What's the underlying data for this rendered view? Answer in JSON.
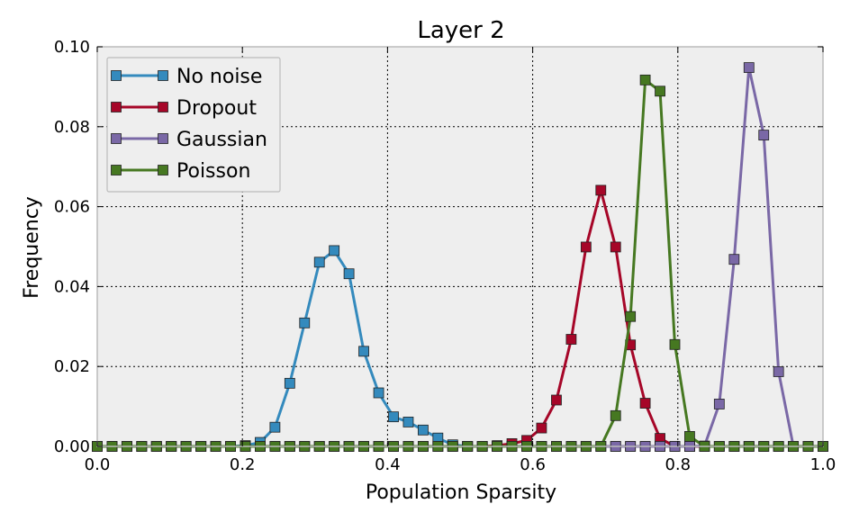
{
  "chart_data": {
    "type": "line",
    "title": "Layer 2",
    "xlabel": "Population Sparsity",
    "ylabel": "Frequency",
    "xlim": [
      0.0,
      1.0
    ],
    "ylim": [
      0.0,
      0.1
    ],
    "xticks": [
      "0.0",
      "0.2",
      "0.4",
      "0.6",
      "0.8",
      "1.0"
    ],
    "yticks": [
      "0.00",
      "0.02",
      "0.04",
      "0.06",
      "0.08",
      "0.10"
    ],
    "grid": true,
    "legend_position": "upper-left",
    "x": [
      0.0,
      0.0204,
      0.0408,
      0.0612,
      0.0816,
      0.102,
      0.1224,
      0.1429,
      0.1633,
      0.1837,
      0.2041,
      0.2245,
      0.2449,
      0.2653,
      0.2857,
      0.3061,
      0.3265,
      0.3469,
      0.3673,
      0.3878,
      0.4082,
      0.4286,
      0.449,
      0.4694,
      0.4898,
      0.5102,
      0.5306,
      0.551,
      0.5714,
      0.5918,
      0.6122,
      0.6327,
      0.6531,
      0.6735,
      0.6939,
      0.7143,
      0.7347,
      0.7551,
      0.7755,
      0.7959,
      0.8163,
      0.8367,
      0.8571,
      0.8776,
      0.898,
      0.9184,
      0.9388,
      0.9592,
      0.9796,
      1.0
    ],
    "series": [
      {
        "name": "No noise",
        "color": "#348abd",
        "values": [
          0,
          0,
          0,
          0,
          0,
          0,
          0,
          0,
          0,
          0,
          0.0002,
          0.001,
          0.0048,
          0.0158,
          0.0309,
          0.0461,
          0.049,
          0.0432,
          0.0238,
          0.0134,
          0.0074,
          0.0061,
          0.0041,
          0.0021,
          0.0004,
          0,
          0,
          0,
          0,
          0,
          0,
          0,
          0,
          0,
          0,
          0,
          0,
          0,
          0,
          0,
          0,
          0,
          0,
          0,
          0,
          0,
          0,
          0,
          0,
          0
        ]
      },
      {
        "name": "Dropout",
        "color": "#a60628",
        "values": [
          0,
          0,
          0,
          0,
          0,
          0,
          0,
          0,
          0,
          0,
          0,
          0,
          0,
          0,
          0,
          0,
          0,
          0,
          0,
          0,
          0,
          0,
          0,
          0,
          0,
          0,
          0,
          0.0002,
          0.0007,
          0.0015,
          0.0046,
          0.0116,
          0.0268,
          0.0499,
          0.0641,
          0.0499,
          0.0254,
          0.0108,
          0.002,
          0,
          0,
          0,
          0,
          0,
          0,
          0,
          0,
          0,
          0,
          0
        ]
      },
      {
        "name": "Gaussian",
        "color": "#7a68a6",
        "values": [
          0,
          0,
          0,
          0,
          0,
          0,
          0,
          0,
          0,
          0,
          0,
          0,
          0,
          0,
          0,
          0,
          0,
          0,
          0,
          0,
          0,
          0,
          0,
          0,
          0,
          0,
          0,
          0,
          0,
          0,
          0,
          0,
          0,
          0,
          0,
          0,
          0,
          0,
          0,
          0,
          0,
          0.0001,
          0.0106,
          0.0468,
          0.0948,
          0.0779,
          0.0187,
          0,
          0,
          0
        ]
      },
      {
        "name": "Poisson",
        "color": "#467821",
        "values": [
          0,
          0,
          0,
          0,
          0,
          0,
          0,
          0,
          0,
          0,
          0,
          0,
          0,
          0,
          0,
          0,
          0,
          0,
          0,
          0,
          0,
          0,
          0,
          0,
          0,
          0,
          0,
          0,
          0,
          0,
          0,
          0,
          0,
          0,
          0,
          0.0077,
          0.0325,
          0.0917,
          0.0889,
          0.0255,
          0.0025,
          0,
          0,
          0,
          0,
          0,
          0,
          0,
          0,
          0
        ]
      }
    ]
  }
}
